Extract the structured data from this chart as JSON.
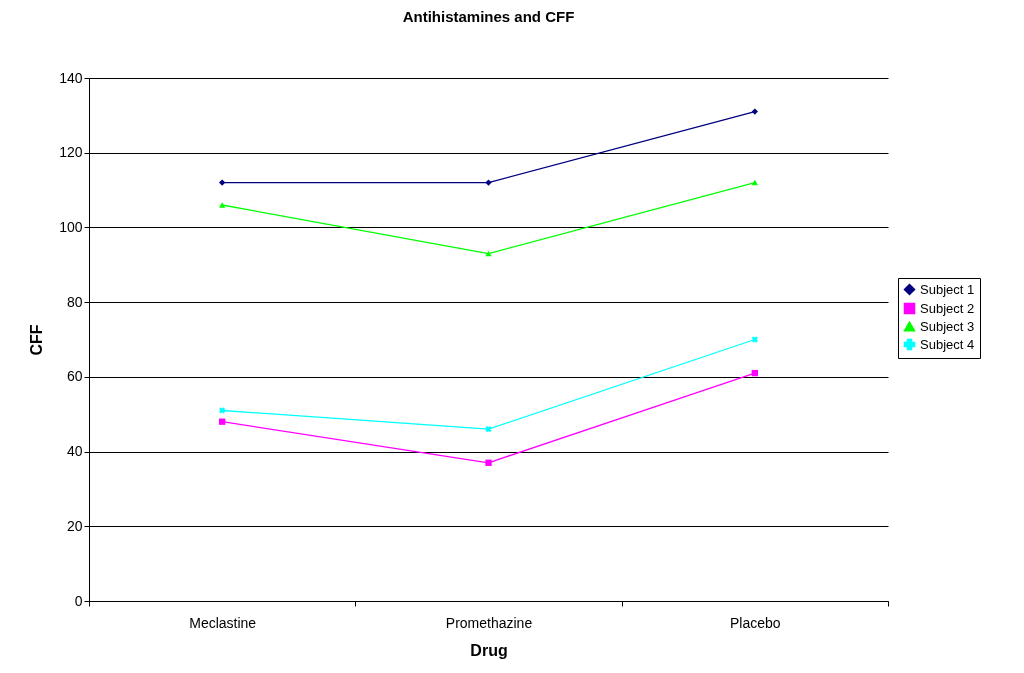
{
  "chart_data": {
    "type": "line",
    "title": "Antihistamines and CFF",
    "xlabel": "Drug",
    "ylabel": "CFF",
    "categories": [
      "Meclastine",
      "Promethazine",
      "Placebo"
    ],
    "series": [
      {
        "name": "Subject 1",
        "color": "#000080",
        "marker": "diamond",
        "values": [
          112,
          112,
          131
        ]
      },
      {
        "name": "Subject 2",
        "color": "#ff00ff",
        "marker": "square",
        "values": [
          48,
          37,
          61
        ]
      },
      {
        "name": "Subject 3",
        "color": "#00ff00",
        "marker": "triangle",
        "values": [
          106,
          93,
          112
        ]
      },
      {
        "name": "Subject 4",
        "color": "#00ffff",
        "marker": "cross",
        "values": [
          51,
          46,
          70
        ]
      }
    ],
    "ylim": [
      0,
      140
    ],
    "yticks": [
      0,
      20,
      40,
      60,
      80,
      100,
      120,
      140
    ],
    "grid": "y",
    "legend": "right"
  }
}
